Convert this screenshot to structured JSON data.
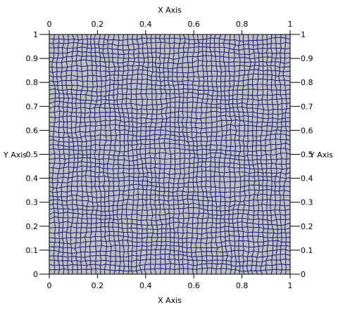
{
  "axes": {
    "x_title_top": "X Axis",
    "x_title_bottom": "X Axis",
    "y_title_left": "Y Axis",
    "y_title_right": "Y Axis",
    "x_ticks": [
      "0",
      "0.2",
      "0.4",
      "0.6",
      "0.8",
      "1"
    ],
    "y_ticks": [
      "0",
      "0.1",
      "0.2",
      "0.3",
      "0.4",
      "0.5",
      "0.6",
      "0.7",
      "0.8",
      "0.9",
      "1"
    ],
    "range": [
      0,
      1
    ]
  },
  "mesh": {
    "cell_type": "quadrilateral",
    "fill_color": "#c0c0c0",
    "edge_color": "#1a1a78"
  },
  "colors": {
    "background": "#ffffff",
    "axis": "#000000"
  }
}
